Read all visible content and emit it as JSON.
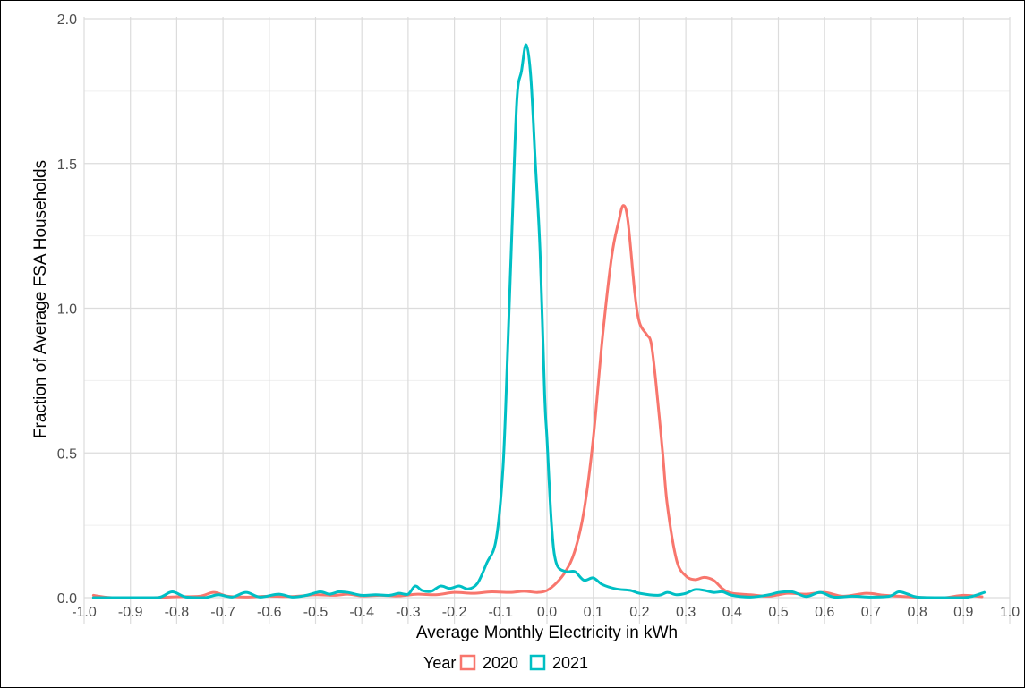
{
  "chart_data": {
    "type": "line",
    "title": "",
    "xlabel": "Average Monthly Electricity in kWh",
    "ylabel": "Fraction of Average FSA Households",
    "xlim": [
      -1.0,
      1.0
    ],
    "ylim": [
      0.0,
      2.0
    ],
    "x_ticks": [
      "-1.0",
      "-0.9",
      "-0.8",
      "-0.7",
      "-0.6",
      "-0.5",
      "-0.4",
      "-0.3",
      "-0.2",
      "-0.1",
      "0.0",
      "0.1",
      "0.2",
      "0.3",
      "0.4",
      "0.5",
      "0.6",
      "0.7",
      "0.8",
      "0.9",
      "1.0"
    ],
    "x_tick_values": [
      -1.0,
      -0.9,
      -0.8,
      -0.7,
      -0.6,
      -0.5,
      -0.4,
      -0.3,
      -0.2,
      -0.1,
      0.0,
      0.1,
      0.2,
      0.3,
      0.4,
      0.5,
      0.6,
      0.7,
      0.8,
      0.9,
      1.0
    ],
    "y_ticks": [
      "0.0",
      "0.5",
      "1.0",
      "1.5",
      "2.0"
    ],
    "y_tick_values": [
      0.0,
      0.5,
      1.0,
      1.5,
      2.0
    ],
    "grid": true,
    "legend": {
      "title": "Year",
      "position": "bottom"
    },
    "series": [
      {
        "name": "2020",
        "color": "#F8766D",
        "points": [
          [
            -0.98,
            0.008
          ],
          [
            -0.94,
            0.0
          ],
          [
            -0.85,
            0.0
          ],
          [
            -0.8,
            0.003
          ],
          [
            -0.75,
            0.005
          ],
          [
            -0.72,
            0.018
          ],
          [
            -0.69,
            0.005
          ],
          [
            -0.65,
            0.002
          ],
          [
            -0.6,
            0.005
          ],
          [
            -0.55,
            0.004
          ],
          [
            -0.5,
            0.01
          ],
          [
            -0.46,
            0.008
          ],
          [
            -0.43,
            0.012
          ],
          [
            -0.4,
            0.006
          ],
          [
            -0.36,
            0.008
          ],
          [
            -0.32,
            0.006
          ],
          [
            -0.28,
            0.012
          ],
          [
            -0.24,
            0.01
          ],
          [
            -0.2,
            0.018
          ],
          [
            -0.16,
            0.015
          ],
          [
            -0.12,
            0.02
          ],
          [
            -0.08,
            0.018
          ],
          [
            -0.05,
            0.022
          ],
          [
            -0.02,
            0.018
          ],
          [
            0.0,
            0.025
          ],
          [
            0.02,
            0.05
          ],
          [
            0.04,
            0.09
          ],
          [
            0.06,
            0.16
          ],
          [
            0.08,
            0.3
          ],
          [
            0.1,
            0.55
          ],
          [
            0.12,
            0.9
          ],
          [
            0.14,
            1.18
          ],
          [
            0.155,
            1.3
          ],
          [
            0.165,
            1.355
          ],
          [
            0.175,
            1.3
          ],
          [
            0.19,
            1.05
          ],
          [
            0.2,
            0.95
          ],
          [
            0.215,
            0.91
          ],
          [
            0.225,
            0.88
          ],
          [
            0.235,
            0.75
          ],
          [
            0.25,
            0.5
          ],
          [
            0.26,
            0.32
          ],
          [
            0.28,
            0.13
          ],
          [
            0.3,
            0.075
          ],
          [
            0.32,
            0.062
          ],
          [
            0.34,
            0.07
          ],
          [
            0.36,
            0.06
          ],
          [
            0.38,
            0.03
          ],
          [
            0.4,
            0.015
          ],
          [
            0.44,
            0.01
          ],
          [
            0.48,
            0.005
          ],
          [
            0.52,
            0.015
          ],
          [
            0.56,
            0.012
          ],
          [
            0.6,
            0.018
          ],
          [
            0.64,
            0.005
          ],
          [
            0.69,
            0.015
          ],
          [
            0.73,
            0.008
          ],
          [
            0.78,
            0.003
          ],
          [
            0.82,
            0.0
          ],
          [
            0.86,
            0.0
          ],
          [
            0.9,
            0.008
          ],
          [
            0.94,
            0.003
          ]
        ]
      },
      {
        "name": "2021",
        "color": "#00BFC4",
        "points": [
          [
            -0.98,
            0.0
          ],
          [
            -0.9,
            0.0
          ],
          [
            -0.84,
            0.0
          ],
          [
            -0.81,
            0.02
          ],
          [
            -0.78,
            0.002
          ],
          [
            -0.74,
            0.0
          ],
          [
            -0.71,
            0.01
          ],
          [
            -0.68,
            0.002
          ],
          [
            -0.65,
            0.018
          ],
          [
            -0.62,
            0.002
          ],
          [
            -0.58,
            0.012
          ],
          [
            -0.55,
            0.002
          ],
          [
            -0.52,
            0.008
          ],
          [
            -0.49,
            0.02
          ],
          [
            -0.47,
            0.012
          ],
          [
            -0.45,
            0.02
          ],
          [
            -0.43,
            0.018
          ],
          [
            -0.4,
            0.008
          ],
          [
            -0.37,
            0.01
          ],
          [
            -0.34,
            0.008
          ],
          [
            -0.32,
            0.015
          ],
          [
            -0.3,
            0.012
          ],
          [
            -0.285,
            0.04
          ],
          [
            -0.27,
            0.025
          ],
          [
            -0.25,
            0.022
          ],
          [
            -0.23,
            0.04
          ],
          [
            -0.21,
            0.032
          ],
          [
            -0.19,
            0.04
          ],
          [
            -0.17,
            0.03
          ],
          [
            -0.15,
            0.05
          ],
          [
            -0.13,
            0.12
          ],
          [
            -0.11,
            0.2
          ],
          [
            -0.095,
            0.45
          ],
          [
            -0.085,
            0.85
          ],
          [
            -0.075,
            1.3
          ],
          [
            -0.065,
            1.72
          ],
          [
            -0.055,
            1.82
          ],
          [
            -0.045,
            1.91
          ],
          [
            -0.035,
            1.8
          ],
          [
            -0.025,
            1.5
          ],
          [
            -0.015,
            1.2
          ],
          [
            -0.005,
            0.7
          ],
          [
            0.0,
            0.55
          ],
          [
            0.01,
            0.25
          ],
          [
            0.02,
            0.12
          ],
          [
            0.04,
            0.09
          ],
          [
            0.06,
            0.09
          ],
          [
            0.08,
            0.06
          ],
          [
            0.1,
            0.068
          ],
          [
            0.12,
            0.045
          ],
          [
            0.15,
            0.03
          ],
          [
            0.18,
            0.025
          ],
          [
            0.2,
            0.015
          ],
          [
            0.24,
            0.008
          ],
          [
            0.26,
            0.018
          ],
          [
            0.28,
            0.01
          ],
          [
            0.3,
            0.015
          ],
          [
            0.32,
            0.028
          ],
          [
            0.34,
            0.025
          ],
          [
            0.36,
            0.018
          ],
          [
            0.38,
            0.02
          ],
          [
            0.4,
            0.008
          ],
          [
            0.44,
            0.002
          ],
          [
            0.48,
            0.01
          ],
          [
            0.5,
            0.018
          ],
          [
            0.53,
            0.02
          ],
          [
            0.56,
            0.004
          ],
          [
            0.59,
            0.018
          ],
          [
            0.62,
            0.002
          ],
          [
            0.66,
            0.005
          ],
          [
            0.7,
            0.002
          ],
          [
            0.74,
            0.005
          ],
          [
            0.76,
            0.02
          ],
          [
            0.78,
            0.012
          ],
          [
            0.8,
            0.002
          ],
          [
            0.85,
            0.0
          ],
          [
            0.9,
            0.0
          ],
          [
            0.92,
            0.005
          ],
          [
            0.945,
            0.018
          ]
        ]
      }
    ]
  }
}
